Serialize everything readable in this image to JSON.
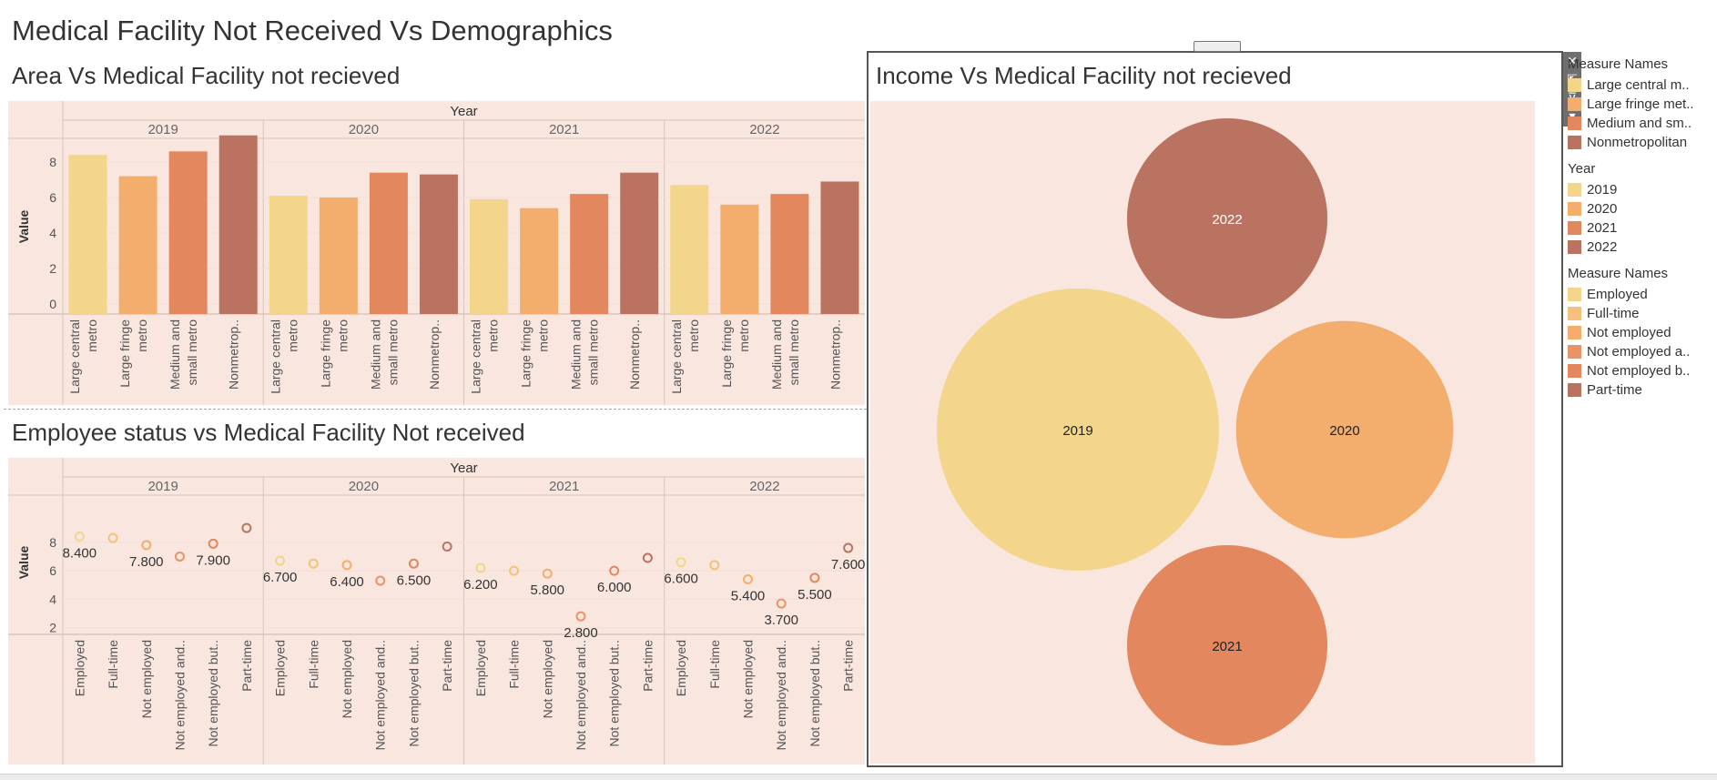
{
  "dashboard_title": "Medical Facility Not Received Vs Demographics",
  "panels": {
    "area_title": "Area Vs Medical Facility not recieved",
    "employee_title": "Employee status vs Medical Facility Not received",
    "income_title": "Income Vs Medical Facility not recieved"
  },
  "legend": {
    "area_title": "Measure Names",
    "area_items": [
      "Large central m..",
      "Large fringe met..",
      "Medium and sm..",
      "Nonmetropolitan"
    ],
    "year_title": "Year",
    "year_items": [
      "2019",
      "2020",
      "2021",
      "2022"
    ],
    "emp_title": "Measure Names",
    "emp_items": [
      "Employed",
      "Full-time",
      "Not employed",
      "Not employed a..",
      "Not employed b..",
      "Part-time"
    ]
  },
  "colors": {
    "year": [
      "#f3d68c",
      "#f3ad6c",
      "#e2875e",
      "#bb7361"
    ],
    "area": [
      "#f3d68c",
      "#f3ad6c",
      "#e2875e",
      "#bb7361"
    ],
    "emp": [
      "#f3d68c",
      "#f5c07c",
      "#f3ad6c",
      "#e8946a",
      "#e2875e",
      "#bb7361"
    ],
    "background": "#f8e6df"
  },
  "chart_data": [
    {
      "type": "bar",
      "title": "Area Vs Medical Facility not recieved",
      "column_header": "Year",
      "groups": [
        "2019",
        "2020",
        "2021",
        "2022"
      ],
      "categories": [
        "Large central metro",
        "Large fringe metro",
        "Medium and small metro",
        "Nonmetropolitan"
      ],
      "category_labels": [
        [
          "Large central",
          "metro"
        ],
        [
          "Large fringe",
          "metro"
        ],
        [
          "Medium and",
          "small metro"
        ],
        [
          "Nonmetrop.."
        ]
      ],
      "series": [
        {
          "name": "2019",
          "values": [
            8.4,
            7.2,
            8.6,
            9.5
          ]
        },
        {
          "name": "2020",
          "values": [
            6.1,
            6.0,
            7.4,
            7.3
          ]
        },
        {
          "name": "2021",
          "values": [
            5.9,
            5.4,
            6.2,
            7.4
          ]
        },
        {
          "name": "2022",
          "values": [
            6.7,
            5.6,
            6.2,
            6.9
          ]
        }
      ],
      "ylabel": "Value",
      "yticks": [
        0,
        2,
        4,
        6,
        8
      ],
      "ylim": [
        0,
        10
      ]
    },
    {
      "type": "scatter",
      "title": "Employee status vs Medical Facility Not received",
      "column_header": "Year",
      "groups": [
        "2019",
        "2020",
        "2021",
        "2022"
      ],
      "categories": [
        "Employed",
        "Full-time",
        "Not employed",
        "Not employed and..",
        "Not employed but..",
        "Part-time"
      ],
      "series": [
        {
          "name": "2019",
          "values": [
            8.4,
            8.3,
            7.8,
            7.0,
            7.9,
            9.0
          ]
        },
        {
          "name": "2020",
          "values": [
            6.7,
            6.5,
            6.4,
            5.3,
            6.5,
            7.7
          ]
        },
        {
          "name": "2021",
          "values": [
            6.2,
            6.0,
            5.8,
            2.8,
            6.0,
            6.9
          ]
        },
        {
          "name": "2022",
          "values": [
            6.6,
            6.4,
            5.4,
            3.7,
            5.5,
            7.6
          ]
        }
      ],
      "data_labels": [
        [
          {
            "i": 0,
            "text": "8.400"
          },
          {
            "i": 2,
            "text": "7.800"
          },
          {
            "i": 4,
            "text": "7.900"
          }
        ],
        [
          {
            "i": 0,
            "text": "6.700"
          },
          {
            "i": 2,
            "text": "6.400"
          },
          {
            "i": 4,
            "text": "6.500"
          }
        ],
        [
          {
            "i": 0,
            "text": "6.200"
          },
          {
            "i": 2,
            "text": "5.800"
          },
          {
            "i": 3,
            "text": "2.800"
          },
          {
            "i": 4,
            "text": "6.000"
          }
        ],
        [
          {
            "i": 0,
            "text": "6.600"
          },
          {
            "i": 2,
            "text": "5.400"
          },
          {
            "i": 3,
            "text": "3.700"
          },
          {
            "i": 4,
            "text": "5.500"
          },
          {
            "i": 5,
            "text": "7.600"
          }
        ]
      ],
      "ylabel": "Value",
      "yticks": [
        2,
        4,
        6,
        8
      ],
      "ylim": [
        0,
        10
      ]
    },
    {
      "type": "bubble",
      "title": "Income Vs Medical Facility not recieved",
      "labels": [
        "2019",
        "2020",
        "2021",
        "2022"
      ],
      "relative_size": [
        1.0,
        0.77,
        0.71,
        0.71
      ]
    }
  ]
}
